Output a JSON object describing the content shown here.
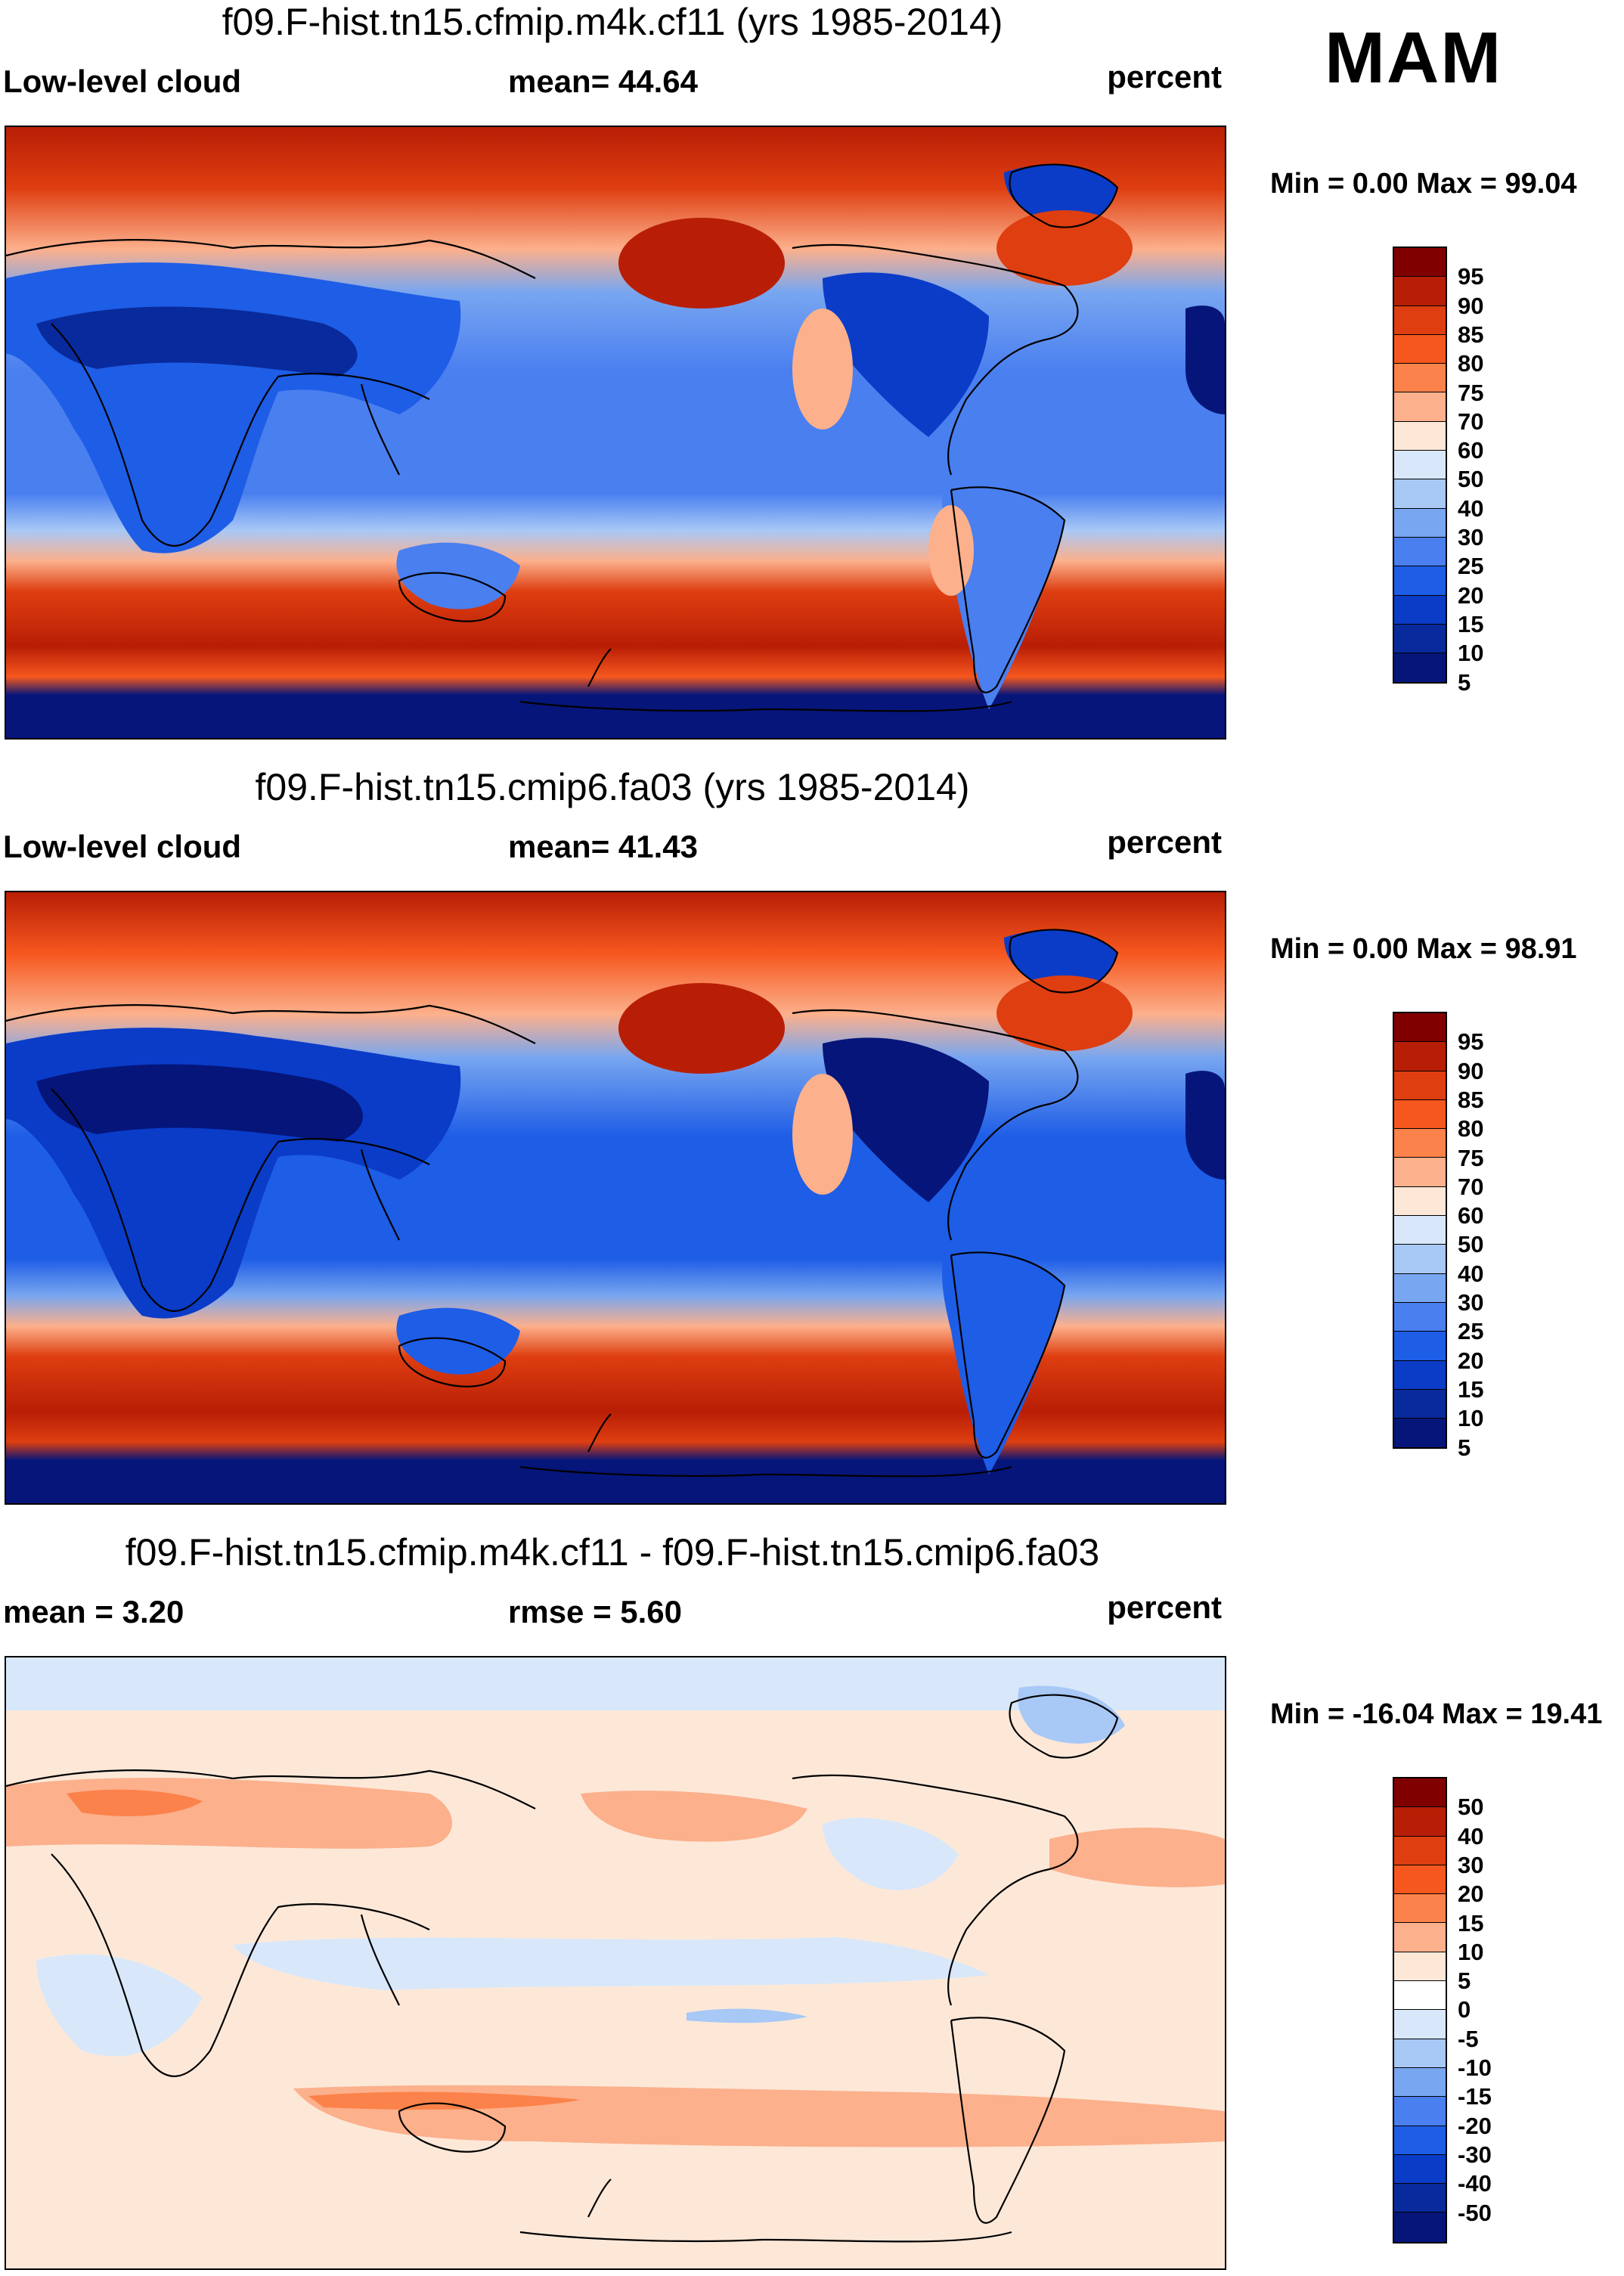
{
  "season": "MAM",
  "panels": [
    {
      "title": "f09.F-hist.tn15.cfmip.m4k.cf11 (yrs 1985-2014)",
      "left_label": "Low-level cloud",
      "mid_label": "mean=  44.64",
      "right_label": "percent",
      "minmax": "Min =   0.00 Max =  99.04"
    },
    {
      "title": "f09.F-hist.tn15.cmip6.fa03 (yrs 1985-2014)",
      "left_label": "Low-level cloud",
      "mid_label": "mean=  41.43",
      "right_label": "percent",
      "minmax": "Min =   0.00 Max =  98.91"
    },
    {
      "title": "f09.F-hist.tn15.cfmip.m4k.cf11 - f09.F-hist.tn15.cmip6.fa03",
      "left_label": "mean =    3.20",
      "mid_label": "rmse =    5.60",
      "right_label": "percent",
      "minmax": "Min = -16.04 Max =  19.41"
    }
  ],
  "colorbar_abs": {
    "colors": [
      "#800000",
      "#b81e06",
      "#de3e10",
      "#f6571e",
      "#fb824a",
      "#fcb08c",
      "#fde8d8",
      "#d8e8fa",
      "#a8c8f6",
      "#78a6f0",
      "#4a7ff0",
      "#1e5de6",
      "#0a3cc8",
      "#082a9c",
      "#05157a"
    ],
    "labels": [
      "95",
      "90",
      "85",
      "80",
      "75",
      "70",
      "60",
      "50",
      "40",
      "30",
      "25",
      "20",
      "15",
      "10",
      "5"
    ]
  },
  "colorbar_diff": {
    "colors": [
      "#800000",
      "#b81e06",
      "#de3e10",
      "#f6571e",
      "#fb824a",
      "#fcb08c",
      "#fde8d8",
      "#ffffff",
      "#d8e8fa",
      "#a8c8f6",
      "#78a6f0",
      "#4a7ff0",
      "#1e5de6",
      "#0a3cc8",
      "#082a9c",
      "#05157a"
    ],
    "labels": [
      "50",
      "40",
      "30",
      "20",
      "15",
      "10",
      "5",
      "0",
      "-5",
      "-10",
      "-15",
      "-20",
      "-30",
      "-40",
      "-50"
    ]
  }
}
